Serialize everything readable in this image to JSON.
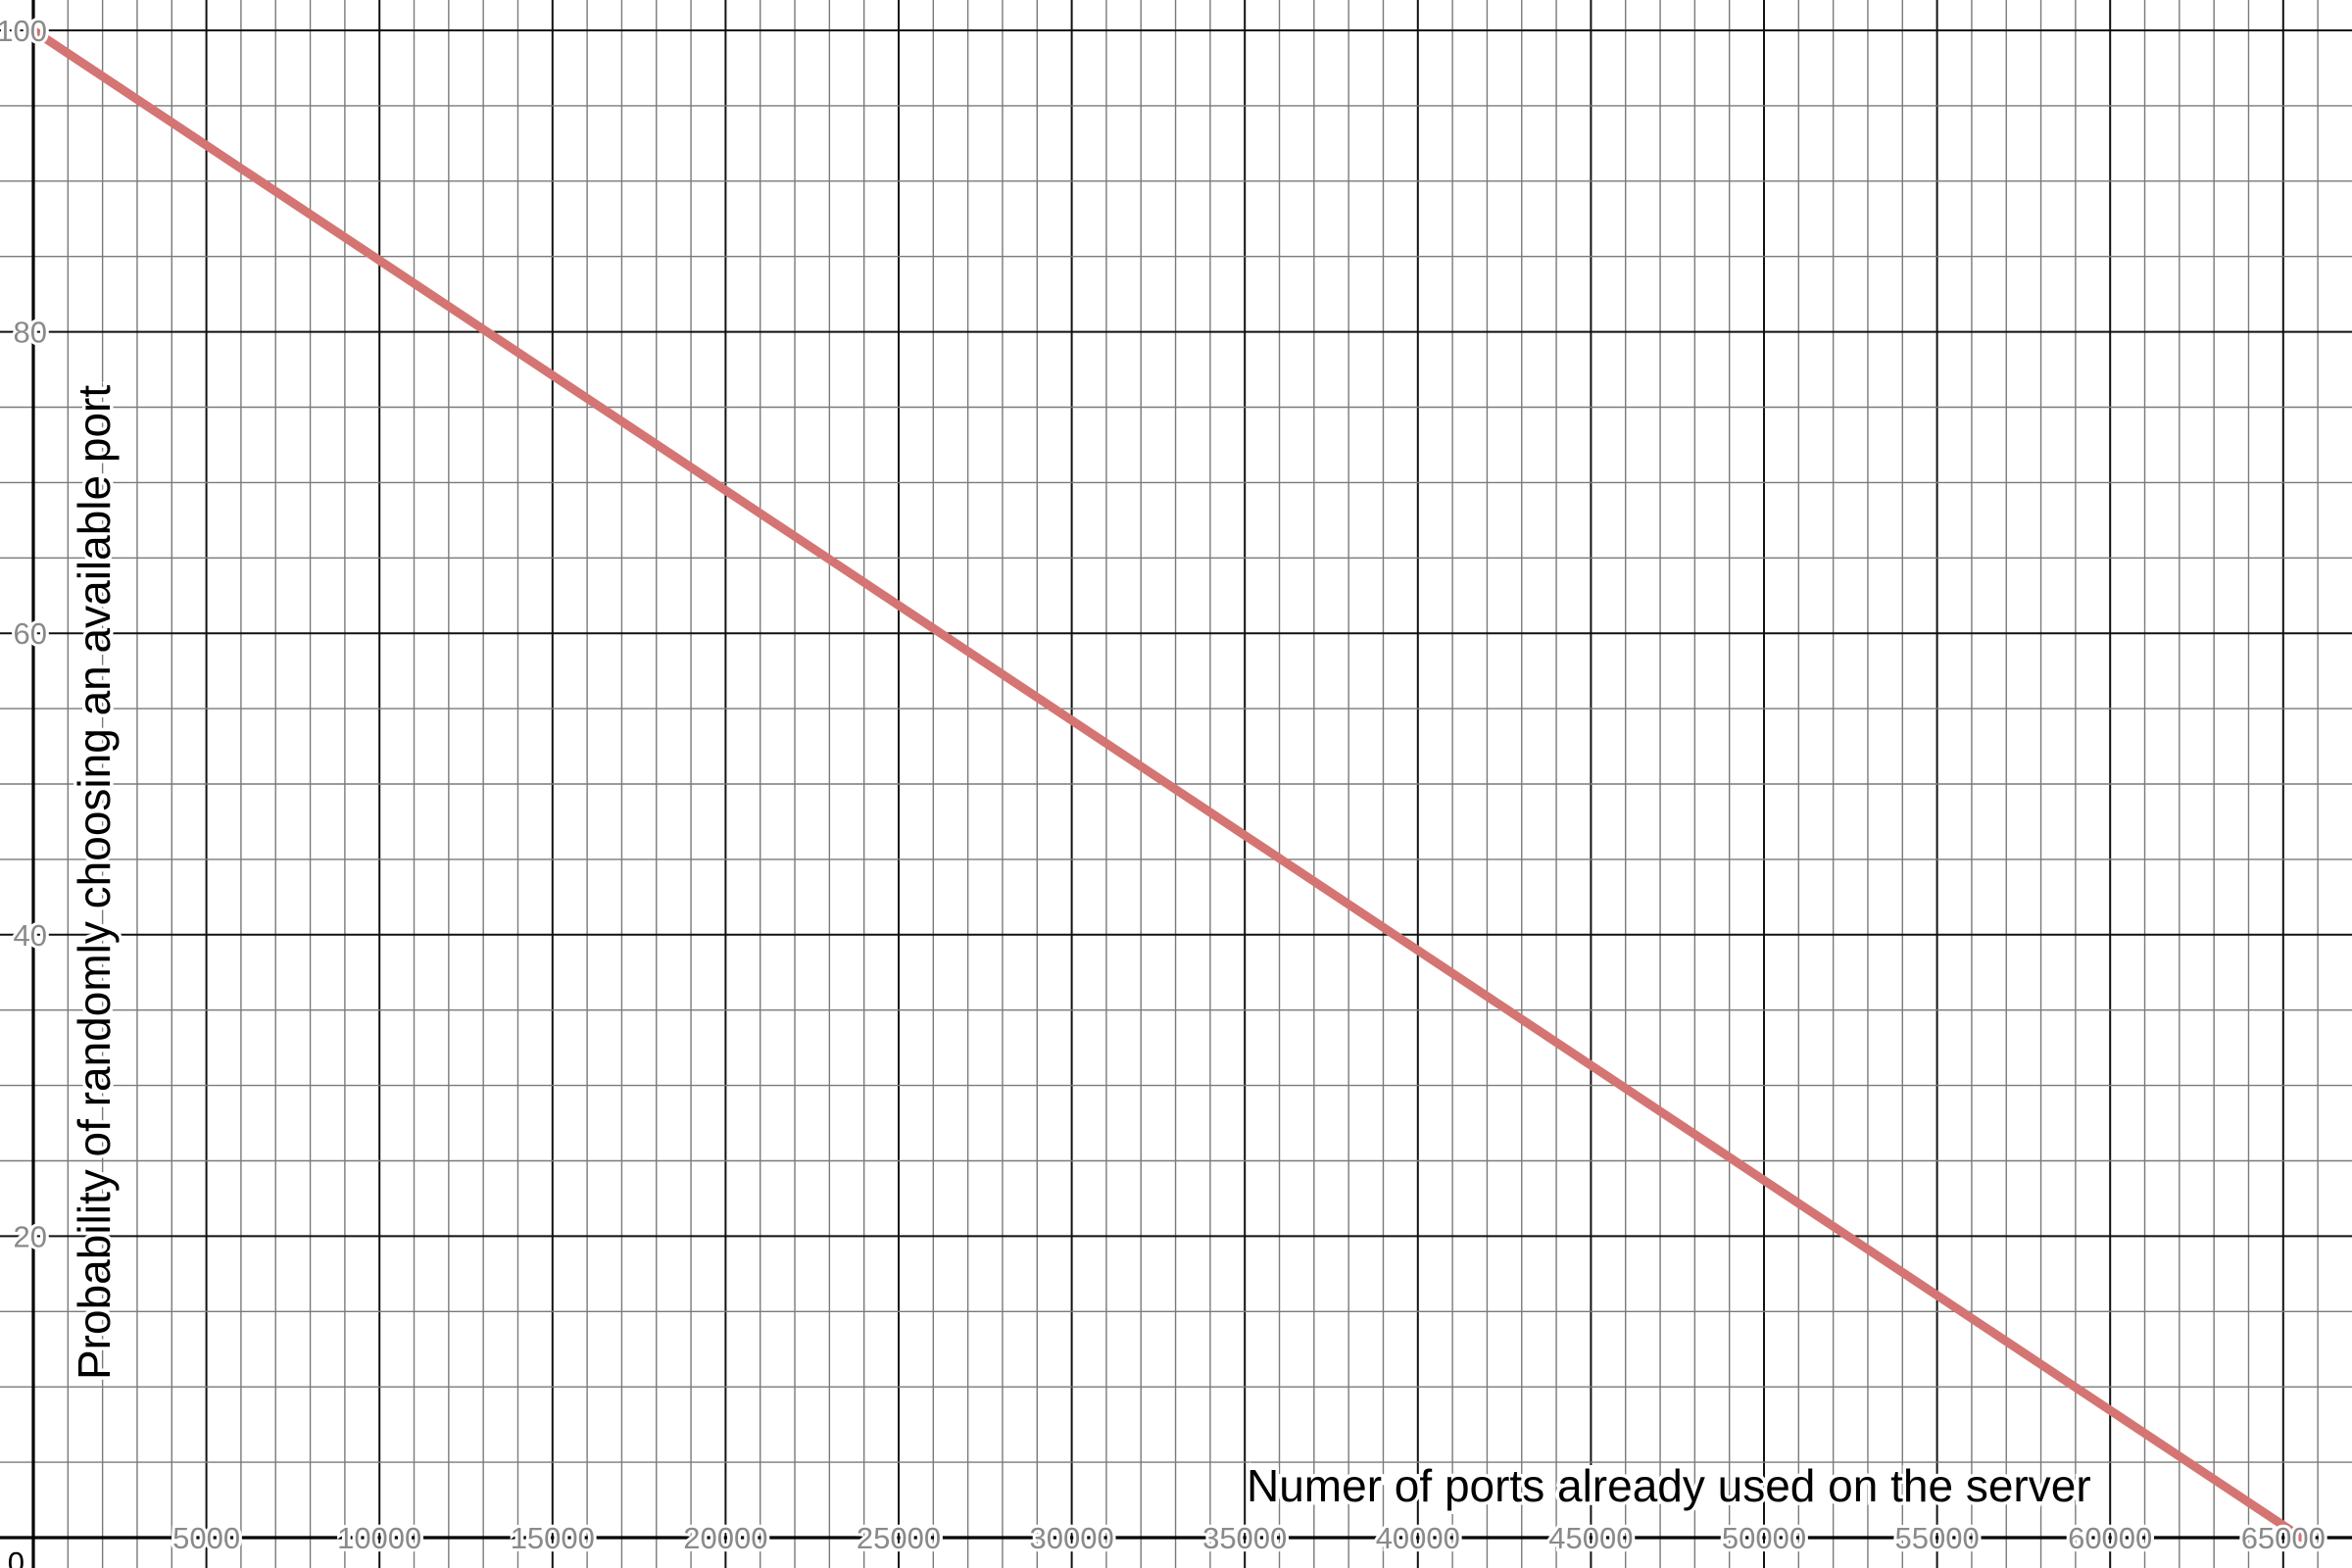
{
  "chart_data": {
    "type": "line",
    "title": "",
    "xlabel": "Numer of ports already used on the server",
    "ylabel": "Probability of randomly choosing an available port",
    "xlim": [
      0,
      67500
    ],
    "ylim": [
      -2.2,
      101.8
    ],
    "x_ticks": [
      5000,
      10000,
      15000,
      20000,
      25000,
      30000,
      35000,
      40000,
      45000,
      50000,
      55000,
      60000,
      65000
    ],
    "y_ticks": [
      20,
      40,
      60,
      80,
      100
    ],
    "origin_label": "0",
    "x_minor_step": 1000,
    "x_major_step": 5000,
    "y_minor_step": 5,
    "y_major_step": 20,
    "grid": true,
    "series": [
      {
        "color": "#d47573",
        "x": [
          0,
          65535
        ],
        "y": [
          100,
          0
        ]
      }
    ]
  }
}
